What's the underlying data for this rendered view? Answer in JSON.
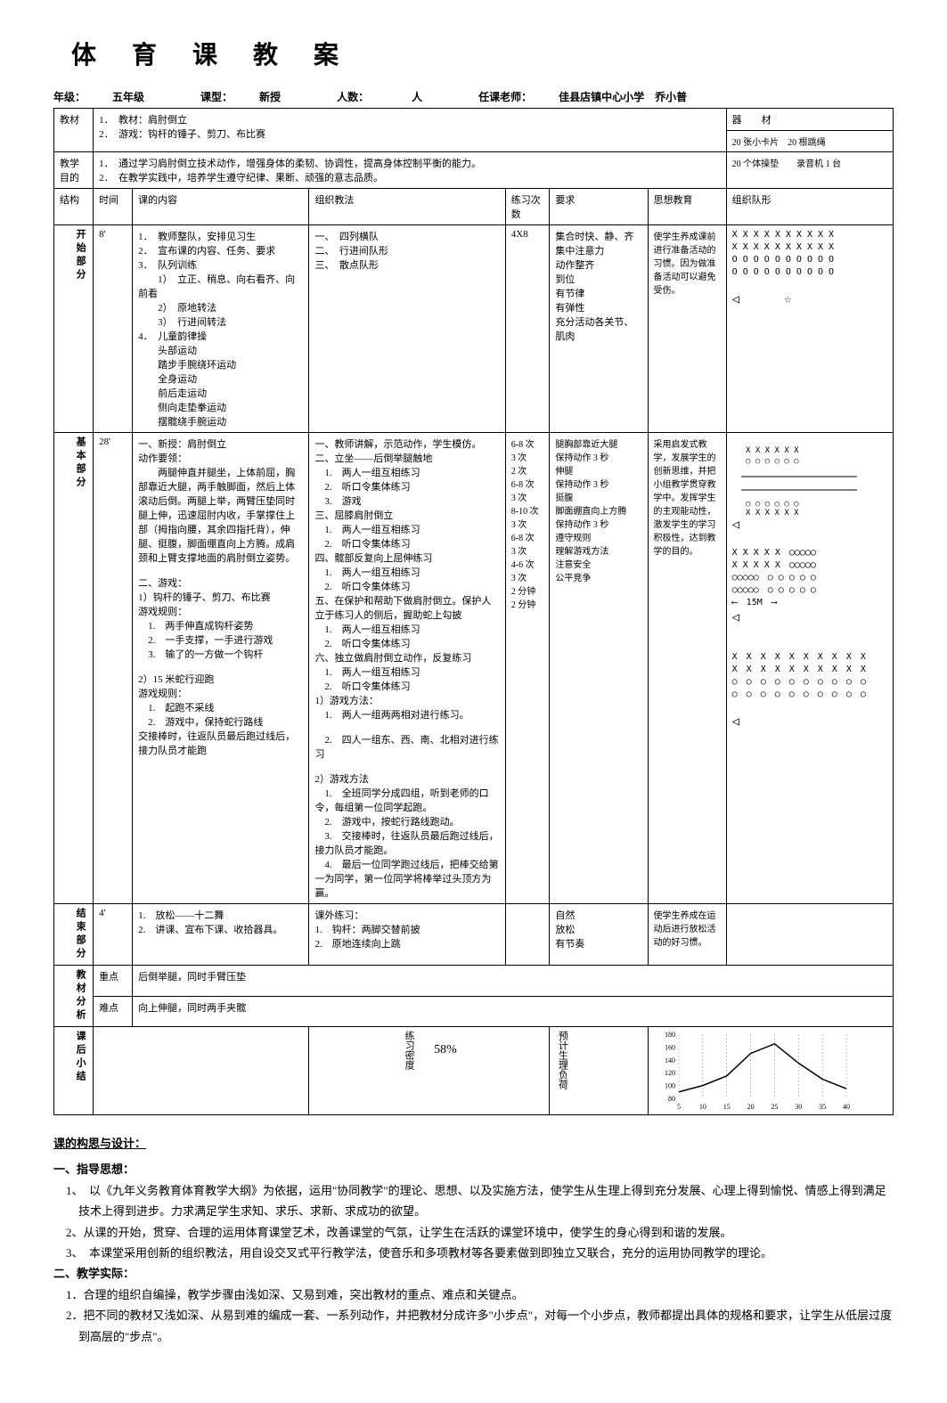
{
  "title": "体育课教案",
  "meta": {
    "grade_label": "年级：",
    "grade": "五年级",
    "type_label": "课型：",
    "type": "新授",
    "count_label": "人数：",
    "count_unit": "人",
    "teacher_label": "任课老师：",
    "teacher": "佳县店镇中心小学　乔小普"
  },
  "row1": {
    "label": "教材",
    "items": [
      "1．　教材：肩肘倒立",
      "2．　游戏：钩杆的锤子、剪刀、布比赛"
    ],
    "equip_label": "器　　材",
    "equip": "20 张小卡片　20 根跳绳"
  },
  "row2": {
    "label": "教学目的",
    "items": [
      "1．　通过学习肩肘倒立技术动作，增强身体的柔韧、协调性，提高身体控制平衡的能力。",
      "2．　在教学实践中，培养学生遵守纪律、果断、顽强的意志品质。"
    ],
    "equip": "20 个体操垫　　录音机 1 台"
  },
  "headers": {
    "h1": "结构",
    "h2": "时间",
    "h3": "课的内容",
    "h4": "组织教法",
    "h5": "练习次数",
    "h6": "要求",
    "h7": "思想教育",
    "h8": "组织队形"
  },
  "start": {
    "label": "开始部分",
    "time": "8'",
    "content_items": [
      "1．　教师整队，安排见习生",
      "2．　宣布课的内容、任务、要求",
      "3．　队列训练",
      "　　1）　立正、稍息、向右看齐、向前看",
      "　　2）　原地转法",
      "　　3）　行进间转法",
      "4．　儿童韵律操",
      "　　头部运动",
      "　　踏步手腕绕环运动",
      "　　全身运动",
      "　　前后走运动",
      "　　侧向走垫拳运动",
      "　　摆髋绕手腕运动"
    ],
    "org_items": [
      "一、　四列横队",
      "二、　行进间队形",
      "三、　散点队形"
    ],
    "reps": "4X8",
    "req_items": [
      "集合时快、静、齐",
      "",
      "集中注意力",
      "",
      "动作整齐",
      "到位",
      "有节律",
      "有弹性",
      "充分活动各关节、肌肉"
    ],
    "edu_items": [
      "使学生养成课前进行准备活动的习惯。因为做准备活动可以避免受伤。"
    ]
  },
  "main": {
    "label": "基本部分",
    "time": "28'",
    "content": "一、新授：肩肘倒立\n动作要领：\n　　两腿伸直并腿坐，上体前屈，胸部靠近大腿，两手触脚面，然后上体滚动后倒。两腿上举，两臂压垫同时腿上伸，迅速屈肘内收，手掌撑住上部（拇指向腰，其余四指托背），伸腿、挺腹，脚面绷直向上方腾。成肩颈和上臂支撑地面的肩肘倒立姿势。\n\n二、游戏：\n1）钩杆的锤子、剪刀、布比赛\n游戏规则：\n　1.　两手伸直成钩杆姿势\n　2.　一手支撑，一手进行游戏\n　3.　输了的一方做一个钩杆\n\n2）15 米蛇行迎跑\n游戏规则：\n　1.　起跑不采线\n　2.　游戏中，保持蛇行路线\n交接棒时，往返队员最后跑过线后，接力队员才能跑",
    "org": "一、教师讲解，示范动作，学生模仿。\n二、立坐——后倒举腿触地\n　1.　两人一组互相练习\n　2.　听口令集体练习\n　3.　游戏\n三、屈膝肩肘倒立\n　1.　两人一组互相练习\n　2.　听口令集体练习\n四、髋部反复向上屈伸练习\n　1.　两人一组互相练习\n　2.　听口令集体练习\n五、在保护和帮助下做肩肘倒立。保护人立于练习人的侧后，握助蛇上勾披\n　1.　两人一组互相练习\n　2.　听口令集体练习\n六、独立做肩肘倒立动作，反复练习\n　1.　两人一组互相练习\n　2.　听口令集体练习\n1）游戏方法：\n　1.　两人一组两两相对进行练习。\n\n　2.　四人一组东、西、南、北相对进行练习\n\n2）游戏方法\n　1.　全班同学分成四组，听到老师的口令，每组第一位同学起跑。\n　2.　游戏中，按蛇行路线跑动。\n　3.　交接棒时，往返队员最后跑过线后，接力队员才能跑。\n　4.　最后一位同学跑过线后，把棒交给第一为同学，第一位同学将棒举过头顶方为赢。",
    "reps_list": [
      "6-8 次",
      "3 次",
      "2 次",
      "",
      "6-8 次",
      "3 次",
      "",
      "8-10 次",
      "3 次",
      "",
      "",
      "6-8 次",
      "3 次",
      "",
      "4-6 次",
      "3 次",
      "",
      "2 分钟",
      "",
      "2 分钟"
    ],
    "req_list": [
      "腿胸部靠近大腿\n保持动作 3 秒",
      "",
      "",
      "",
      "伸腿\n保持动作 3 秒",
      "",
      "",
      "挺腹",
      "",
      "",
      "",
      "脚面绷直向上方腾\n保持动作 3 秒",
      "",
      "",
      "",
      "",
      "",
      "",
      "",
      "",
      "",
      "",
      "遵守规则\n理解游戏方法\n注意安全\n公平竞争"
    ],
    "edu": "采用启发式教学，发展学生的创新思维，并把小组教学贯穿教学中。发挥学生的主观能动性，激发学生的学习积极性，达到教学的目的。"
  },
  "end": {
    "label": "结束部分",
    "time": "4'",
    "content_items": [
      "1.　放松——十二舞",
      "2.　讲课、宣布下课、收拾器具。"
    ],
    "org_items": [
      "课外练习：",
      "1.　钩杆：两脚交替前披",
      "2.　原地连续向上跳"
    ],
    "req_items": [
      "自然",
      "放松",
      "有节奏"
    ],
    "edu": "使学生养成在运动后进行放松活动的好习惯。"
  },
  "analysis": {
    "label": "教材分析",
    "key_label": "重点",
    "key": "后倒举腿，同时手臂压垫",
    "diff_label": "难点",
    "diff": "向上伸腿，同时两手夹髋"
  },
  "after": {
    "label": "课后小结",
    "density_label": "练习密度",
    "density": "58%",
    "load_label": "预计生理负荷",
    "chart": {
      "type": "line",
      "y_ticks": [
        80,
        100,
        120,
        140,
        160,
        180
      ],
      "x_ticks": [
        5,
        10,
        15,
        20,
        25,
        30,
        35,
        40
      ],
      "values": [
        90,
        100,
        115,
        150,
        165,
        135,
        110,
        95
      ],
      "line_color": "#000000",
      "grid_color": "#888888"
    }
  },
  "plan": {
    "title": "课的构思与设计：",
    "s1_title": "一、指导思想：",
    "s1_items": [
      "1、　以《九年义务教育体育教学大纲》为依据，运用\"协同教学\"的理论、思想、以及实施方法，使学生从生理上得到充分发展、心理上得到愉悦、情感上得到满足技术上得到进步。力求满足学生求知、求乐、求新、求成功的欲望。",
      "2、从课的开始，贯穿、合理的运用体育课堂艺术，改善课堂的气氛，让学生在活跃的课堂环境中，使学生的身心得到和谐的发展。",
      "3、　本课堂采用创新的组织教法，用自设交叉式平行教学法，使音乐和多项教材等各要素做到即独立又联合，充分的运用协同教学的理论。"
    ],
    "s2_title": "二、教学实际：",
    "s2_items": [
      "1．合理的组织自编操，教学步骤由浅如深、又易到难，突出教材的重点、难点和关键点。",
      "2．把不同的教材又浅如深、从易到难的编成一套、一系列动作，并把教材分成许多\"小步点\"，对每一个小步点，教师都提出具体的规格和要求，让学生从低层过度到高层的\"步点\"。"
    ]
  }
}
